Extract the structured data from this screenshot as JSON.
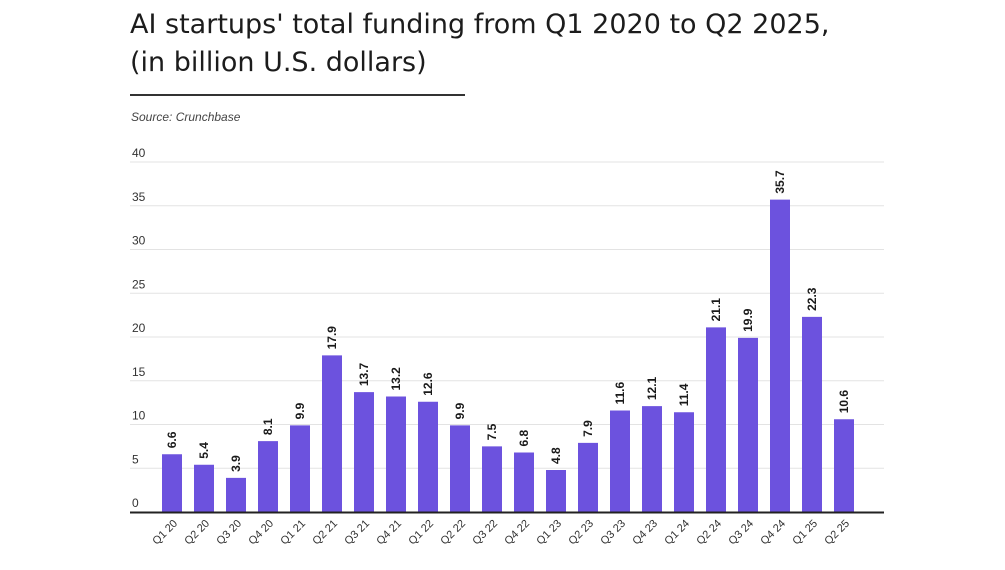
{
  "title_line1": "AI startups' total funding from Q1 2020 to Q2 2025,",
  "title_line2": "(in billion U.S. dollars)",
  "source": "Source: Crunchbase",
  "colors": {
    "bar": "#6C52DE",
    "grid": "#e3e3e3",
    "axis": "#222222"
  },
  "chart_data": {
    "type": "bar",
    "title": "AI startups' total funding from Q1 2020 to Q2 2025, (in billion U.S. dollars)",
    "categories": [
      "Q1 20",
      "Q2 20",
      "Q3 20",
      "Q4 20",
      "Q1 21",
      "Q2 21",
      "Q3 21",
      "Q4 21",
      "Q1 22",
      "Q2 22",
      "Q3 22",
      "Q4 22",
      "Q1 23",
      "Q2 23",
      "Q3 23",
      "Q4 23",
      "Q1 24",
      "Q2 24",
      "Q3 24",
      "Q4 24",
      "Q1 25",
      "Q2 25"
    ],
    "values": [
      6.6,
      5.4,
      3.9,
      8.1,
      9.9,
      17.9,
      13.7,
      13.2,
      12.6,
      9.9,
      7.5,
      6.8,
      4.8,
      7.9,
      11.6,
      12.1,
      11.4,
      21.1,
      19.9,
      35.7,
      22.3,
      10.6
    ],
    "value_labels": [
      "6.6",
      "5.4",
      "3.9",
      "8.1",
      "9.9",
      "17.9",
      "13.7",
      "13.2",
      "12.6",
      "9.9",
      "7.5",
      "6.8",
      "4.8",
      "7.9",
      "11.6",
      "12.1",
      "11.4",
      "21.1",
      "19.9",
      "35.7",
      "22.3",
      "10.6"
    ],
    "y_ticks": [
      "0",
      "5",
      "10",
      "15",
      "20",
      "25",
      "30",
      "35",
      "40"
    ],
    "ylim": [
      0,
      40
    ],
    "xlabel": "",
    "ylabel": "",
    "grid": true,
    "legend": "none"
  }
}
